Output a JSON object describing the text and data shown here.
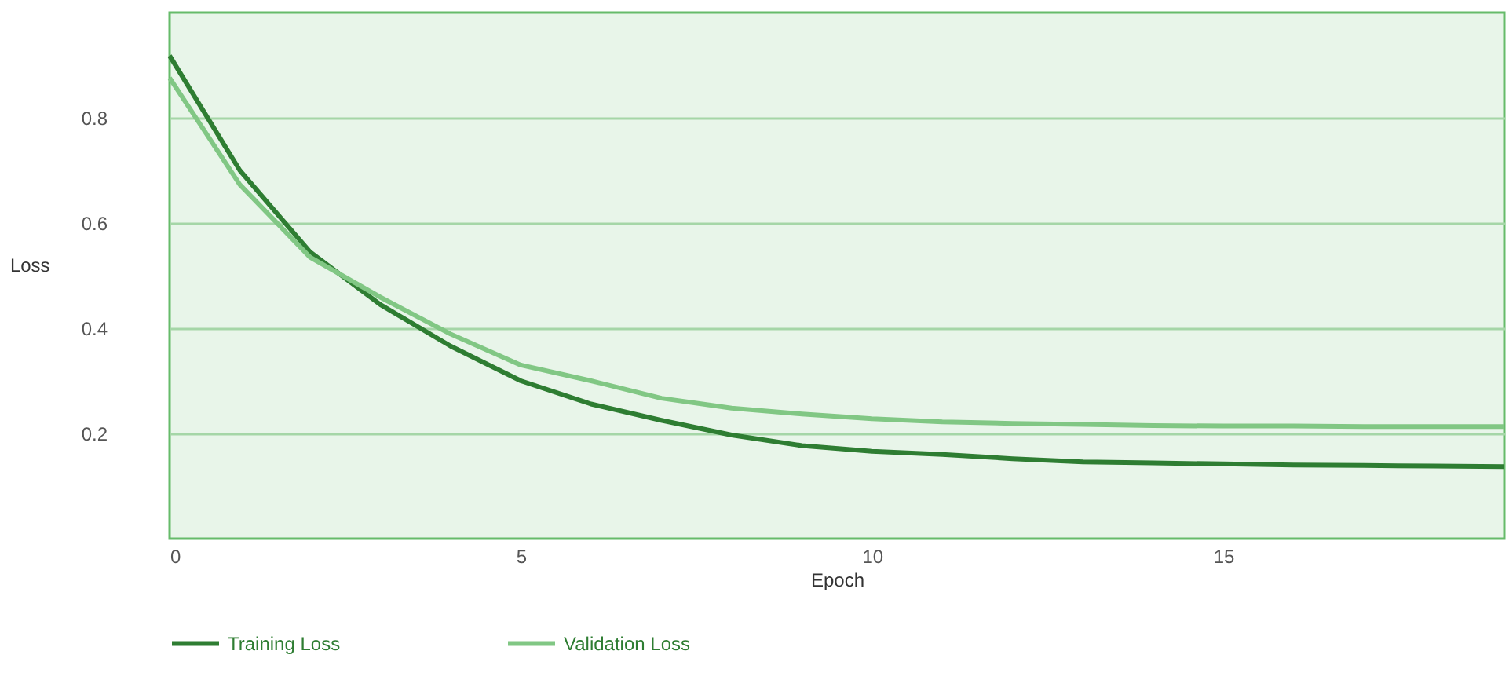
{
  "chart_data": {
    "type": "line",
    "xlabel": "Epoch",
    "ylabel": "Loss",
    "x": [
      0,
      1,
      2,
      3,
      4,
      5,
      6,
      7,
      8,
      9,
      10,
      11,
      12,
      13,
      14,
      15,
      16,
      17,
      18,
      19
    ],
    "series": [
      {
        "name": "Training Loss",
        "color": "#2e7d32",
        "values": [
          0.918,
          0.7,
          0.545,
          0.445,
          0.366,
          0.3,
          0.256,
          0.225,
          0.197,
          0.177,
          0.166,
          0.16,
          0.152,
          0.146,
          0.144,
          0.142,
          0.14,
          0.139,
          0.138,
          0.137
        ]
      },
      {
        "name": "Validation Loss",
        "color": "#81c784",
        "values": [
          0.876,
          0.673,
          0.535,
          0.459,
          0.389,
          0.33,
          0.3,
          0.267,
          0.248,
          0.237,
          0.228,
          0.222,
          0.219,
          0.217,
          0.215,
          0.214,
          0.214,
          0.213,
          0.213,
          0.213
        ]
      }
    ],
    "xlim": [
      0,
      19
    ],
    "xticks": [
      0,
      5,
      10,
      15
    ],
    "ylim": [
      0,
      1
    ],
    "yticks": [
      0.2,
      0.4,
      0.6,
      0.8
    ],
    "grid": "y",
    "legend": "bottom",
    "marker": "none",
    "line_style": "solid"
  }
}
